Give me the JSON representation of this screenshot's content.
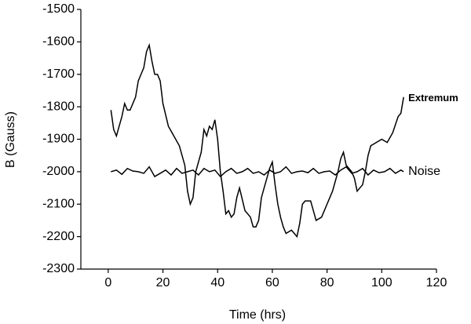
{
  "chart_data": {
    "type": "line",
    "x_label": "Time (hrs)",
    "y_label": "B (Gauss)",
    "xlim": [
      -10,
      120
    ],
    "xticks": [
      0,
      20,
      40,
      60,
      80,
      100,
      120
    ],
    "ylim": [
      -2300,
      -1500
    ],
    "yticks": [
      -2300,
      -2200,
      -2100,
      -2000,
      -1900,
      -1800,
      -1700,
      -1600,
      -1500
    ],
    "grid": false,
    "series": [
      {
        "name": "Extremum",
        "color": "#000000",
        "x": [
          1,
          2,
          3,
          4,
          5,
          6,
          7,
          8,
          10,
          11,
          12,
          13,
          14,
          15,
          16,
          17,
          18,
          19,
          20,
          22,
          24,
          26,
          28,
          29,
          30,
          31,
          32,
          34,
          35,
          36,
          37,
          38,
          39,
          40,
          41,
          42,
          43,
          44,
          45,
          46,
          47,
          48,
          50,
          52,
          53,
          54,
          55,
          56,
          57,
          58,
          59,
          60,
          61,
          62,
          63,
          64,
          65,
          67,
          69,
          70,
          71,
          72,
          74,
          75,
          76,
          78,
          80,
          82,
          84,
          85,
          86,
          87,
          88,
          89,
          90,
          91,
          92,
          93,
          94,
          95,
          96,
          98,
          100,
          102,
          104,
          106,
          107,
          108
        ],
        "values": [
          -1810,
          -1870,
          -1890,
          -1860,
          -1830,
          -1790,
          -1810,
          -1810,
          -1770,
          -1720,
          -1700,
          -1680,
          -1630,
          -1610,
          -1660,
          -1700,
          -1700,
          -1720,
          -1790,
          -1860,
          -1890,
          -1920,
          -1980,
          -2060,
          -2100,
          -2080,
          -2000,
          -1940,
          -1870,
          -1890,
          -1860,
          -1870,
          -1840,
          -1900,
          -2000,
          -2060,
          -2130,
          -2120,
          -2140,
          -2130,
          -2080,
          -2050,
          -2120,
          -2140,
          -2170,
          -2170,
          -2150,
          -2080,
          -2050,
          -2020,
          -1990,
          -1970,
          -2040,
          -2100,
          -2140,
          -2170,
          -2190,
          -2180,
          -2200,
          -2160,
          -2100,
          -2090,
          -2090,
          -2120,
          -2150,
          -2140,
          -2100,
          -2060,
          -2000,
          -1960,
          -1940,
          -1980,
          -1990,
          -2000,
          -2020,
          -2060,
          -2050,
          -2040,
          -2000,
          -1950,
          -1920,
          -1910,
          -1900,
          -1910,
          -1880,
          -1830,
          -1820,
          -1770
        ]
      },
      {
        "name": "Noise",
        "color": "#000000",
        "x": [
          1,
          3,
          5,
          7,
          9,
          11,
          13,
          15,
          17,
          19,
          21,
          23,
          25,
          27,
          29,
          31,
          33,
          35,
          37,
          39,
          41,
          43,
          45,
          47,
          49,
          51,
          53,
          55,
          57,
          59,
          61,
          63,
          65,
          67,
          69,
          71,
          73,
          75,
          77,
          79,
          81,
          83,
          85,
          87,
          89,
          91,
          93,
          95,
          97,
          99,
          101,
          103,
          105,
          107,
          108
        ],
        "values": [
          -2000,
          -1995,
          -2008,
          -1990,
          -1998,
          -2000,
          -2005,
          -1985,
          -2015,
          -2005,
          -1995,
          -2010,
          -1990,
          -2005,
          -2000,
          -1995,
          -2010,
          -1990,
          -2000,
          -1995,
          -2015,
          -2000,
          -1990,
          -2005,
          -2000,
          -1990,
          -2005,
          -2000,
          -2010,
          -1995,
          -2005,
          -2000,
          -1985,
          -2005,
          -2000,
          -1998,
          -2003,
          -1990,
          -2005,
          -2000,
          -1998,
          -2010,
          -1995,
          -1985,
          -2005,
          -2000,
          -1990,
          -2010,
          -1995,
          -2003,
          -2000,
          -1990,
          -2005,
          -1995,
          -2000
        ]
      }
    ]
  }
}
